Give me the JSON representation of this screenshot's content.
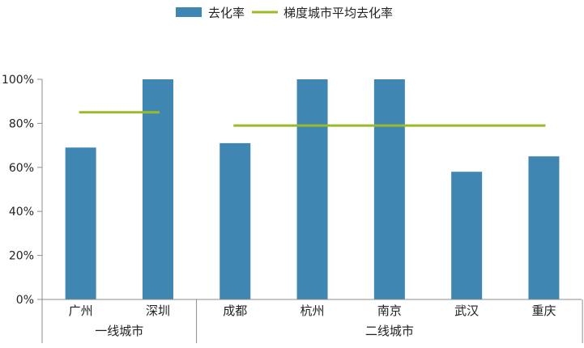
{
  "chart_data": {
    "type": "bar",
    "title": "",
    "xlabel": "",
    "ylabel": "",
    "ylim": [
      0,
      100
    ],
    "ytick_values": [
      0,
      20,
      40,
      60,
      80,
      100
    ],
    "ytick_labels": [
      "0%",
      "20%",
      "40%",
      "60%",
      "80%",
      "100%"
    ],
    "categories": [
      "广州",
      "深圳",
      "成都",
      "杭州",
      "南京",
      "武汉",
      "重庆"
    ],
    "groups": [
      {
        "label": "一线城市",
        "categories": [
          "广州",
          "深圳"
        ]
      },
      {
        "label": "二线城市",
        "categories": [
          "成都",
          "杭州",
          "南京",
          "武汉",
          "重庆"
        ]
      }
    ],
    "series": [
      {
        "name": "去化率",
        "kind": "bar",
        "color": "#3f86b3",
        "values": [
          69,
          100,
          71,
          100,
          100,
          58,
          65
        ]
      },
      {
        "name": "梯度城市平均去化率",
        "kind": "line",
        "color": "#9bbb26",
        "segments": [
          {
            "group": "一线城市",
            "value": 85
          },
          {
            "group": "二线城市",
            "value": 79
          }
        ]
      }
    ],
    "legend_position": "top-center",
    "grid": false
  }
}
